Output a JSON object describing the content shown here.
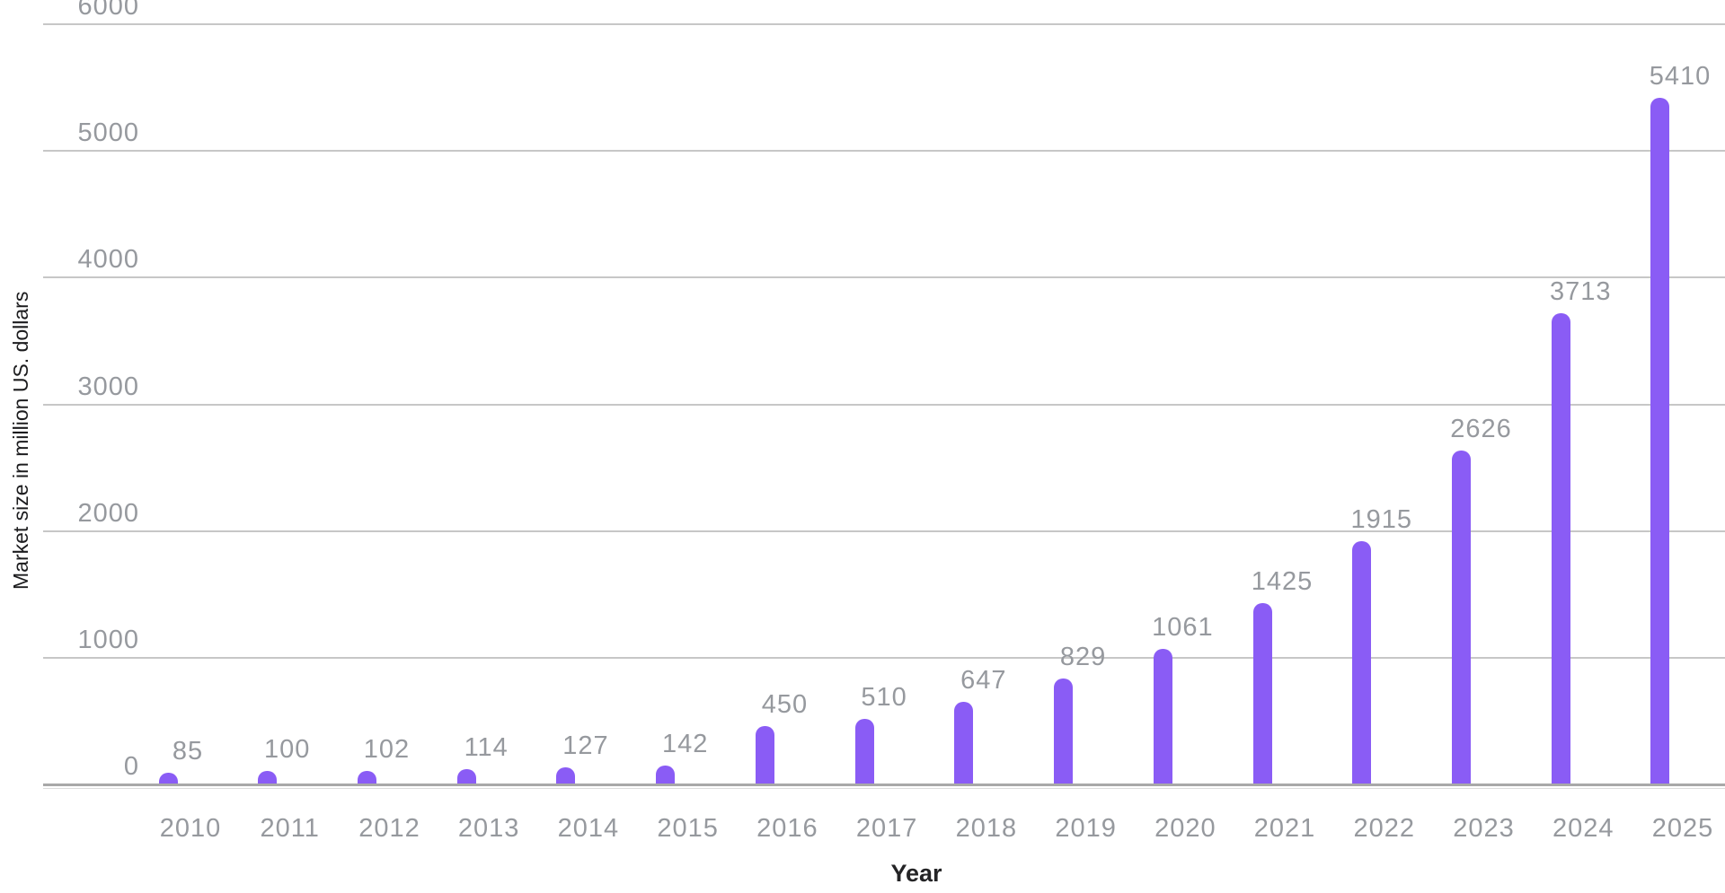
{
  "chart_data": {
    "type": "bar",
    "title": "",
    "xlabel": "Year",
    "ylabel": "Market size in million US. dollars",
    "categories": [
      "2010",
      "2011",
      "2012",
      "2013",
      "2014",
      "2015",
      "2016",
      "2017",
      "2018",
      "2019",
      "2020",
      "2021",
      "2022",
      "2023",
      "2024",
      "2025"
    ],
    "values": [
      85,
      100,
      102,
      114,
      127,
      142,
      450,
      510,
      647,
      829,
      1061,
      1425,
      1915,
      2626,
      3713,
      5410
    ],
    "data_labels": [
      "85",
      "100",
      "102",
      "114",
      "127",
      "142",
      "450",
      "510",
      "647",
      "829",
      "1061",
      "1425",
      "1915",
      "2626",
      "3713",
      "5410"
    ],
    "yticks": [
      0,
      1000,
      2000,
      3000,
      4000,
      5000,
      6000
    ],
    "ylim": [
      0,
      6000
    ],
    "grid": "horizontal-only",
    "legend": "none",
    "colors": {
      "bar": "#8a5cf5",
      "gridline": "#c7c7c7",
      "axis_line": "#a8a8a8",
      "axis_subline": "#dcdcdc",
      "tick_label": "#96999e",
      "value_label": "#96999e",
      "axis_title": "#1c1c1e"
    }
  }
}
